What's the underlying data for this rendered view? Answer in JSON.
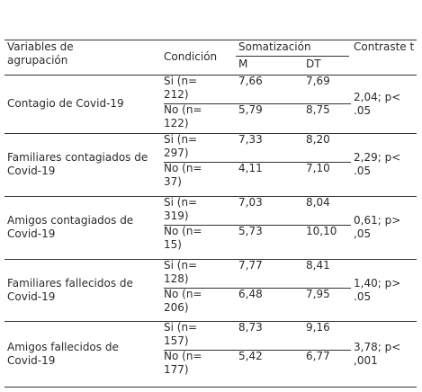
{
  "table": {
    "header": {
      "variables": "Variables de agrupación",
      "condicion": "Condición",
      "somatizacion": "Somatización",
      "m": "M",
      "dt": "DT",
      "contraste": "Contraste t"
    },
    "groups": [
      {
        "label": "Contagio de Covid-19",
        "rows": [
          {
            "condicion": "Si (n= 212)",
            "m": "7,66",
            "dt": "7,69"
          },
          {
            "condicion": "No (n= 122)",
            "m": "5,79",
            "dt": "8,75"
          }
        ],
        "contraste": "2,04; p< .05"
      },
      {
        "label": "Familiares contagiados de Covid-19",
        "rows": [
          {
            "condicion": "Si (n= 297)",
            "m": "7,33",
            "dt": "8,20"
          },
          {
            "condicion": "No (n= 37)",
            "m": "4,11",
            "dt": "7,10"
          }
        ],
        "contraste": "2,29; p< .05"
      },
      {
        "label": "Amigos contagiados de Covid-19",
        "rows": [
          {
            "condicion": "Si (n= 319)",
            "m": "7,03",
            "dt": "8,04"
          },
          {
            "condicion": "No (n= 15)",
            "m": "5,73",
            "dt": "10,10"
          }
        ],
        "contraste": "0,61; p> ,05"
      },
      {
        "label": "Familiares fallecidos de Covid-19",
        "rows": [
          {
            "condicion": "Si (n= 128)",
            "m": "7,77",
            "dt": "8,41"
          },
          {
            "condicion": "No (n= 206)",
            "m": "6,48",
            "dt": "7,95"
          }
        ],
        "contraste": "1,40; p> .05"
      },
      {
        "label": "Amigos fallecidos de Covid-19",
        "rows": [
          {
            "condicion": "Si (n= 157)",
            "m": "8,73",
            "dt": "9,16"
          },
          {
            "condicion": "No (n= 177)",
            "m": "5,42",
            "dt": "6,77"
          }
        ],
        "contraste": "3,78; p< ,001"
      }
    ]
  }
}
